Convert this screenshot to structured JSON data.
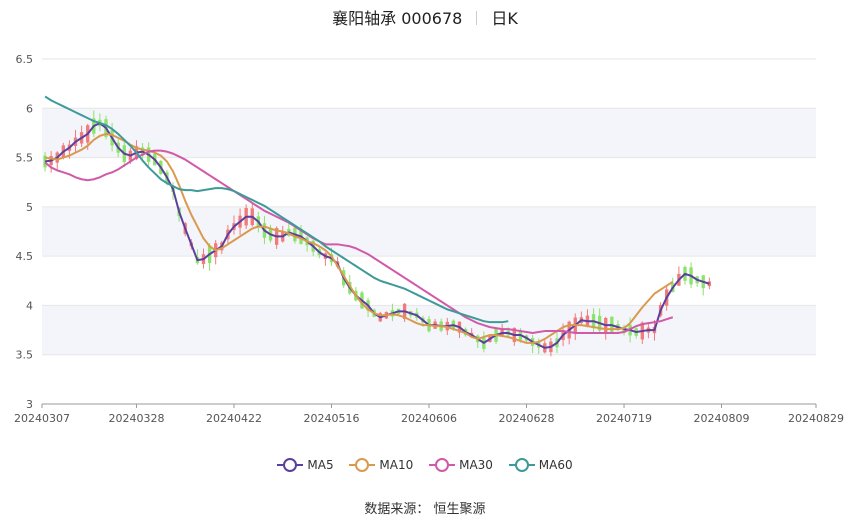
{
  "title": {
    "stock": "襄阳轴承 000678",
    "period": "日K"
  },
  "source": "数据来源： 恒生聚源",
  "colors": {
    "up": "#f07b7b",
    "down": "#8be36b",
    "ma5": "#5b3f9e",
    "ma10": "#d99a50",
    "ma30": "#d05aa8",
    "ma60": "#3d9a98",
    "grid": "#e6e6e6",
    "band": "#f4f5fa"
  },
  "chart_data": {
    "type": "candlestick",
    "ylim": [
      3,
      6.5
    ],
    "y_ticks": [
      "3",
      "3.5",
      "4",
      "4.5",
      "5",
      "5.5",
      "6",
      "6.5"
    ],
    "x_tick_labels": [
      "20240307",
      "20240328",
      "20240422",
      "20240516",
      "20240606",
      "20240628",
      "20240719",
      "20240809",
      "20240829"
    ],
    "x_tick_index": [
      0,
      15,
      31,
      47,
      63,
      79,
      95,
      111,
      126
    ],
    "series": [
      {
        "name": "MA5",
        "color": "#5b3f9e",
        "values": [
          5.46,
          5.47,
          5.5,
          5.56,
          5.6,
          5.66,
          5.7,
          5.74,
          5.82,
          5.85,
          5.8,
          5.7,
          5.6,
          5.54,
          5.52,
          5.55,
          5.56,
          5.53,
          5.48,
          5.4,
          5.3,
          5.18,
          4.95,
          4.78,
          4.62,
          4.46,
          4.47,
          4.52,
          4.56,
          4.6,
          4.72,
          4.8,
          4.85,
          4.9,
          4.9,
          4.85,
          4.76,
          4.72,
          4.7,
          4.7,
          4.74,
          4.72,
          4.7,
          4.65,
          4.6,
          4.54,
          4.5,
          4.48,
          4.42,
          4.28,
          4.18,
          4.1,
          4.05,
          4.0,
          3.92,
          3.88,
          3.9,
          3.92,
          3.94,
          3.94,
          3.92,
          3.9,
          3.85,
          3.8,
          3.8,
          3.79,
          3.79,
          3.8,
          3.78,
          3.73,
          3.7,
          3.66,
          3.62,
          3.66,
          3.7,
          3.72,
          3.72,
          3.7,
          3.7,
          3.67,
          3.63,
          3.6,
          3.57,
          3.58,
          3.62,
          3.7,
          3.75,
          3.8,
          3.85,
          3.84,
          3.84,
          3.82,
          3.8,
          3.8,
          3.78,
          3.76,
          3.75,
          3.73,
          3.74,
          3.75,
          3.75,
          3.95,
          4.08,
          4.18,
          4.26,
          4.32,
          4.3,
          4.26,
          4.24,
          4.22
        ]
      },
      {
        "name": "MA10",
        "color": "#d99a50",
        "values": [
          5.5,
          5.49,
          5.48,
          5.5,
          5.52,
          5.55,
          5.58,
          5.62,
          5.68,
          5.72,
          5.74,
          5.73,
          5.7,
          5.67,
          5.63,
          5.6,
          5.58,
          5.57,
          5.55,
          5.52,
          5.46,
          5.36,
          5.22,
          5.06,
          4.92,
          4.8,
          4.68,
          4.6,
          4.56,
          4.58,
          4.62,
          4.66,
          4.7,
          4.74,
          4.78,
          4.8,
          4.8,
          4.78,
          4.76,
          4.75,
          4.73,
          4.7,
          4.68,
          4.65,
          4.63,
          4.6,
          4.56,
          4.5,
          4.4,
          4.3,
          4.2,
          4.1,
          4.02,
          3.96,
          3.92,
          3.9,
          3.9,
          3.91,
          3.9,
          3.88,
          3.85,
          3.82,
          3.8,
          3.8,
          3.79,
          3.79,
          3.78,
          3.76,
          3.74,
          3.72,
          3.68,
          3.66,
          3.68,
          3.7,
          3.7,
          3.69,
          3.68,
          3.66,
          3.64,
          3.62,
          3.62,
          3.63,
          3.66,
          3.7,
          3.74,
          3.78,
          3.8,
          3.8,
          3.8,
          3.79,
          3.78,
          3.77,
          3.76,
          3.76,
          3.76,
          3.77,
          3.82,
          3.9,
          3.98,
          4.05,
          4.12,
          4.16,
          4.2,
          4.24
        ]
      },
      {
        "name": "MA30",
        "color": "#d05aa8",
        "values": [
          5.45,
          5.4,
          5.37,
          5.35,
          5.33,
          5.3,
          5.28,
          5.27,
          5.28,
          5.3,
          5.33,
          5.35,
          5.38,
          5.42,
          5.46,
          5.5,
          5.53,
          5.56,
          5.57,
          5.57,
          5.56,
          5.54,
          5.51,
          5.48,
          5.44,
          5.4,
          5.36,
          5.32,
          5.28,
          5.24,
          5.2,
          5.16,
          5.12,
          5.08,
          5.04,
          5.0,
          4.96,
          4.93,
          4.9,
          4.87,
          4.84,
          4.8,
          4.76,
          4.72,
          4.68,
          4.65,
          4.62,
          4.62,
          4.62,
          4.61,
          4.6,
          4.58,
          4.55,
          4.52,
          4.48,
          4.44,
          4.4,
          4.36,
          4.32,
          4.28,
          4.24,
          4.2,
          4.16,
          4.12,
          4.08,
          4.04,
          4.0,
          3.96,
          3.92,
          3.88,
          3.85,
          3.82,
          3.8,
          3.78,
          3.77,
          3.76,
          3.76,
          3.75,
          3.74,
          3.73,
          3.72,
          3.73,
          3.74,
          3.74,
          3.74,
          3.74,
          3.73,
          3.72,
          3.72,
          3.72,
          3.72,
          3.72,
          3.72,
          3.72,
          3.72,
          3.73,
          3.76,
          3.79,
          3.81,
          3.82,
          3.83,
          3.84,
          3.86,
          3.88
        ]
      },
      {
        "name": "MA60",
        "color": "#3d9a98",
        "values": [
          6.12,
          6.08,
          6.05,
          6.02,
          5.99,
          5.96,
          5.93,
          5.9,
          5.87,
          5.85,
          5.83,
          5.79,
          5.74,
          5.68,
          5.62,
          5.55,
          5.47,
          5.4,
          5.34,
          5.28,
          5.24,
          5.21,
          5.18,
          5.17,
          5.17,
          5.16,
          5.17,
          5.18,
          5.19,
          5.19,
          5.18,
          5.16,
          5.13,
          5.1,
          5.07,
          5.04,
          5.01,
          4.97,
          4.93,
          4.89,
          4.85,
          4.81,
          4.77,
          4.73,
          4.69,
          4.65,
          4.6,
          4.56,
          4.52,
          4.48,
          4.44,
          4.4,
          4.36,
          4.32,
          4.28,
          4.25,
          4.23,
          4.21,
          4.19,
          4.17,
          4.14,
          4.11,
          4.08,
          4.05,
          4.02,
          3.99,
          3.96,
          3.94,
          3.92,
          3.9,
          3.88,
          3.86,
          3.84,
          3.83,
          3.83,
          3.83,
          3.84
        ]
      }
    ],
    "ohlc_note": "Candles computed around MA5 with alternating up/down colors; see script."
  },
  "legend": {
    "items": [
      {
        "label": "MA5",
        "color": "#5b3f9e"
      },
      {
        "label": "MA10",
        "color": "#d99a50"
      },
      {
        "label": "MA30",
        "color": "#d05aa8"
      },
      {
        "label": "MA60",
        "color": "#3d9a98"
      }
    ]
  }
}
